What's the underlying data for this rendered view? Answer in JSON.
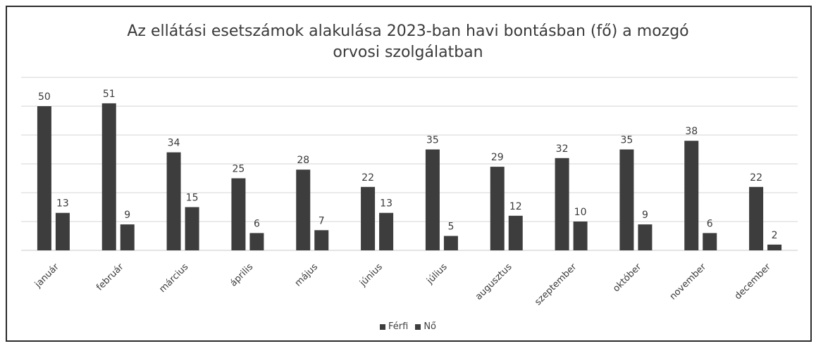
{
  "chart_data": {
    "type": "bar",
    "title": "Az ellátási esetszámok alakulása 2023-ban havi bontásban (fő) a mozgó orvosi szolgálatban",
    "title_lines": [
      "Az ellátási esetszámok alakulása 2023-ban havi bontásban (fő) a mozgó",
      "orvosi szolgálatban"
    ],
    "categories": [
      "január",
      "február",
      "március",
      "április",
      "május",
      "június",
      "július",
      "augusztus",
      "szeptember",
      "október",
      "november",
      "december"
    ],
    "series": [
      {
        "name": "Férfi",
        "color": "#3d3d3d",
        "values": [
          50,
          51,
          34,
          25,
          28,
          22,
          35,
          29,
          32,
          35,
          38,
          22
        ]
      },
      {
        "name": "Nő",
        "color": "#3d3d3d",
        "values": [
          13,
          9,
          15,
          6,
          7,
          13,
          5,
          12,
          10,
          9,
          6,
          2
        ]
      }
    ],
    "ylim": [
      0,
      60
    ],
    "grid": true,
    "legend_position": "bottom",
    "data_labels": true
  }
}
